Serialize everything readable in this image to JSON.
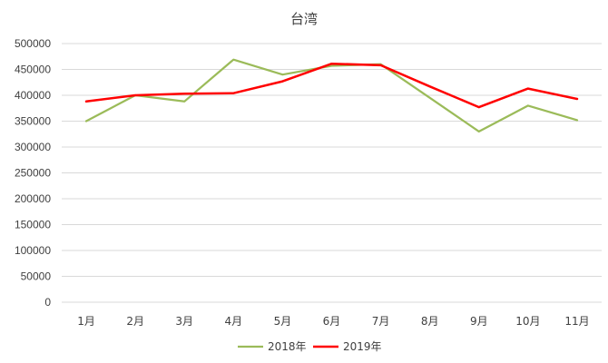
{
  "chart_data": {
    "type": "line",
    "title": "台湾",
    "categories": [
      "1月",
      "2月",
      "3月",
      "4月",
      "5月",
      "6月",
      "7月",
      "8月",
      "9月",
      "10月",
      "11月"
    ],
    "ylim": [
      0,
      500000
    ],
    "yticks": [
      "0",
      "50000",
      "100000",
      "150000",
      "200000",
      "250000",
      "300000",
      "350000",
      "400000",
      "450000",
      "500000"
    ],
    "grid": true,
    "legend_position": "bottom",
    "series": [
      {
        "name": "2018年",
        "color": "#9bbb59",
        "values": [
          350000,
          400000,
          388000,
          469000,
          440000,
          457000,
          460000,
          395000,
          330000,
          380000,
          352000
        ]
      },
      {
        "name": "2019年",
        "color": "#ff0000",
        "values": [
          388000,
          400000,
          403000,
          404000,
          427000,
          461000,
          458000,
          417000,
          377000,
          413000,
          393000
        ]
      }
    ]
  }
}
